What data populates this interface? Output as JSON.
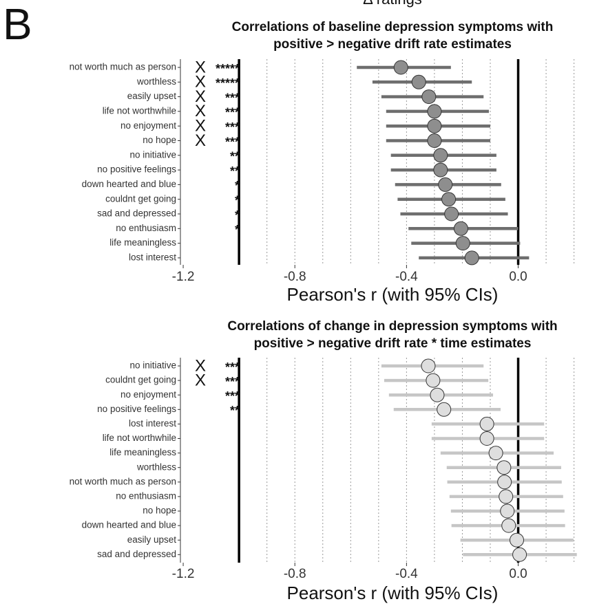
{
  "header": "Δ ratings",
  "panel_label": "B",
  "chart_data": [
    {
      "type": "forest",
      "title": [
        "Correlations of baseline depression symptoms with",
        "positive > negative drift rate estimates"
      ],
      "x_label": "Pearson's r (with 95% CIs)",
      "categories": [
        "not worth much as person",
        "worthless",
        "easily upset",
        "life not worthwhile",
        "no enjoyment",
        "no hope",
        "no initiative",
        "no positive feelings",
        "down hearted and blue",
        "couldnt get going",
        "sad and depressed",
        "no enthusiasm",
        "life meaningless",
        "lost interest"
      ],
      "values": [
        -0.42,
        -0.356,
        -0.32,
        -0.3,
        -0.3,
        -0.3,
        -0.278,
        -0.278,
        -0.261,
        -0.249,
        -0.239,
        -0.205,
        -0.198,
        -0.166
      ],
      "ci_low": [
        -0.578,
        -0.522,
        -0.49,
        -0.473,
        -0.473,
        -0.473,
        -0.456,
        -0.456,
        -0.441,
        -0.432,
        -0.422,
        -0.393,
        -0.383,
        -0.356
      ],
      "ci_high": [
        -0.241,
        -0.166,
        -0.124,
        -0.105,
        -0.1,
        -0.1,
        -0.078,
        -0.078,
        -0.061,
        -0.046,
        -0.037,
        0.0,
        0.007,
        0.039
      ],
      "flags": [
        "X",
        "X",
        "X",
        "X",
        "X",
        "X",
        null,
        null,
        null,
        null,
        null,
        null,
        null,
        null
      ],
      "stars": [
        "*****",
        "*****",
        "***",
        "***",
        "***",
        "***",
        "**",
        "**",
        "*",
        "*",
        "*",
        "*",
        null,
        null
      ],
      "xlim": [
        -1.21,
        0.27
      ],
      "xticks": [
        -1.2,
        -0.8,
        -0.4,
        {
          "value": 0,
          "label": "0.0"
        }
      ],
      "grid_lines": [
        -0.9,
        -0.8,
        -0.7,
        -0.6,
        -0.5,
        -0.4,
        -0.3,
        -0.2,
        -0.1,
        0.1,
        0.2
      ],
      "ref_lines": [
        -1,
        0
      ],
      "color": "#6e6e6e",
      "point_color": "#8e8e8e"
    },
    {
      "type": "forest",
      "title": [
        "Correlations of change in depression symptoms with",
        "positive > negative drift rate * time  estimates"
      ],
      "x_label": "Pearson's r (with 95% CIs)",
      "categories": [
        "no initiative",
        "couldnt get going",
        "no enjoyment",
        "no positive feelings",
        "lost interest",
        "life not worthwhile",
        "life meaningless",
        "worthless",
        "not worth much as person",
        "no enthusiasm",
        "no hope",
        "down hearted and blue",
        "easily upset",
        "sad and depressed"
      ],
      "values": [
        -0.322,
        -0.305,
        -0.29,
        -0.266,
        -0.112,
        -0.112,
        -0.08,
        -0.051,
        -0.049,
        -0.044,
        -0.039,
        -0.034,
        -0.005,
        0.005
      ],
      "ci_low": [
        -0.49,
        -0.48,
        -0.463,
        -0.446,
        -0.31,
        -0.31,
        -0.278,
        -0.256,
        -0.254,
        -0.246,
        -0.241,
        -0.239,
        -0.207,
        -0.198
      ],
      "ci_high": [
        -0.124,
        -0.107,
        -0.09,
        -0.063,
        0.093,
        0.093,
        0.127,
        0.154,
        0.156,
        0.161,
        0.166,
        0.168,
        0.198,
        0.21
      ],
      "flags": [
        "X",
        "X",
        null,
        null,
        null,
        null,
        null,
        null,
        null,
        null,
        null,
        null,
        null,
        null
      ],
      "stars": [
        "***",
        "***",
        "***",
        "**",
        null,
        null,
        null,
        null,
        null,
        null,
        null,
        null,
        null,
        null
      ],
      "xlim": [
        -1.21,
        0.27
      ],
      "xticks": [
        -1.2,
        -0.8,
        -0.4,
        {
          "value": 0,
          "label": "0.0"
        }
      ],
      "grid_lines": [
        -0.9,
        -0.8,
        -0.7,
        -0.6,
        -0.5,
        -0.4,
        -0.3,
        -0.2,
        -0.1,
        0.1,
        0.2
      ],
      "ref_lines": [
        -1,
        0
      ],
      "color": "#c6c6c6",
      "point_color": "#dedede"
    }
  ]
}
